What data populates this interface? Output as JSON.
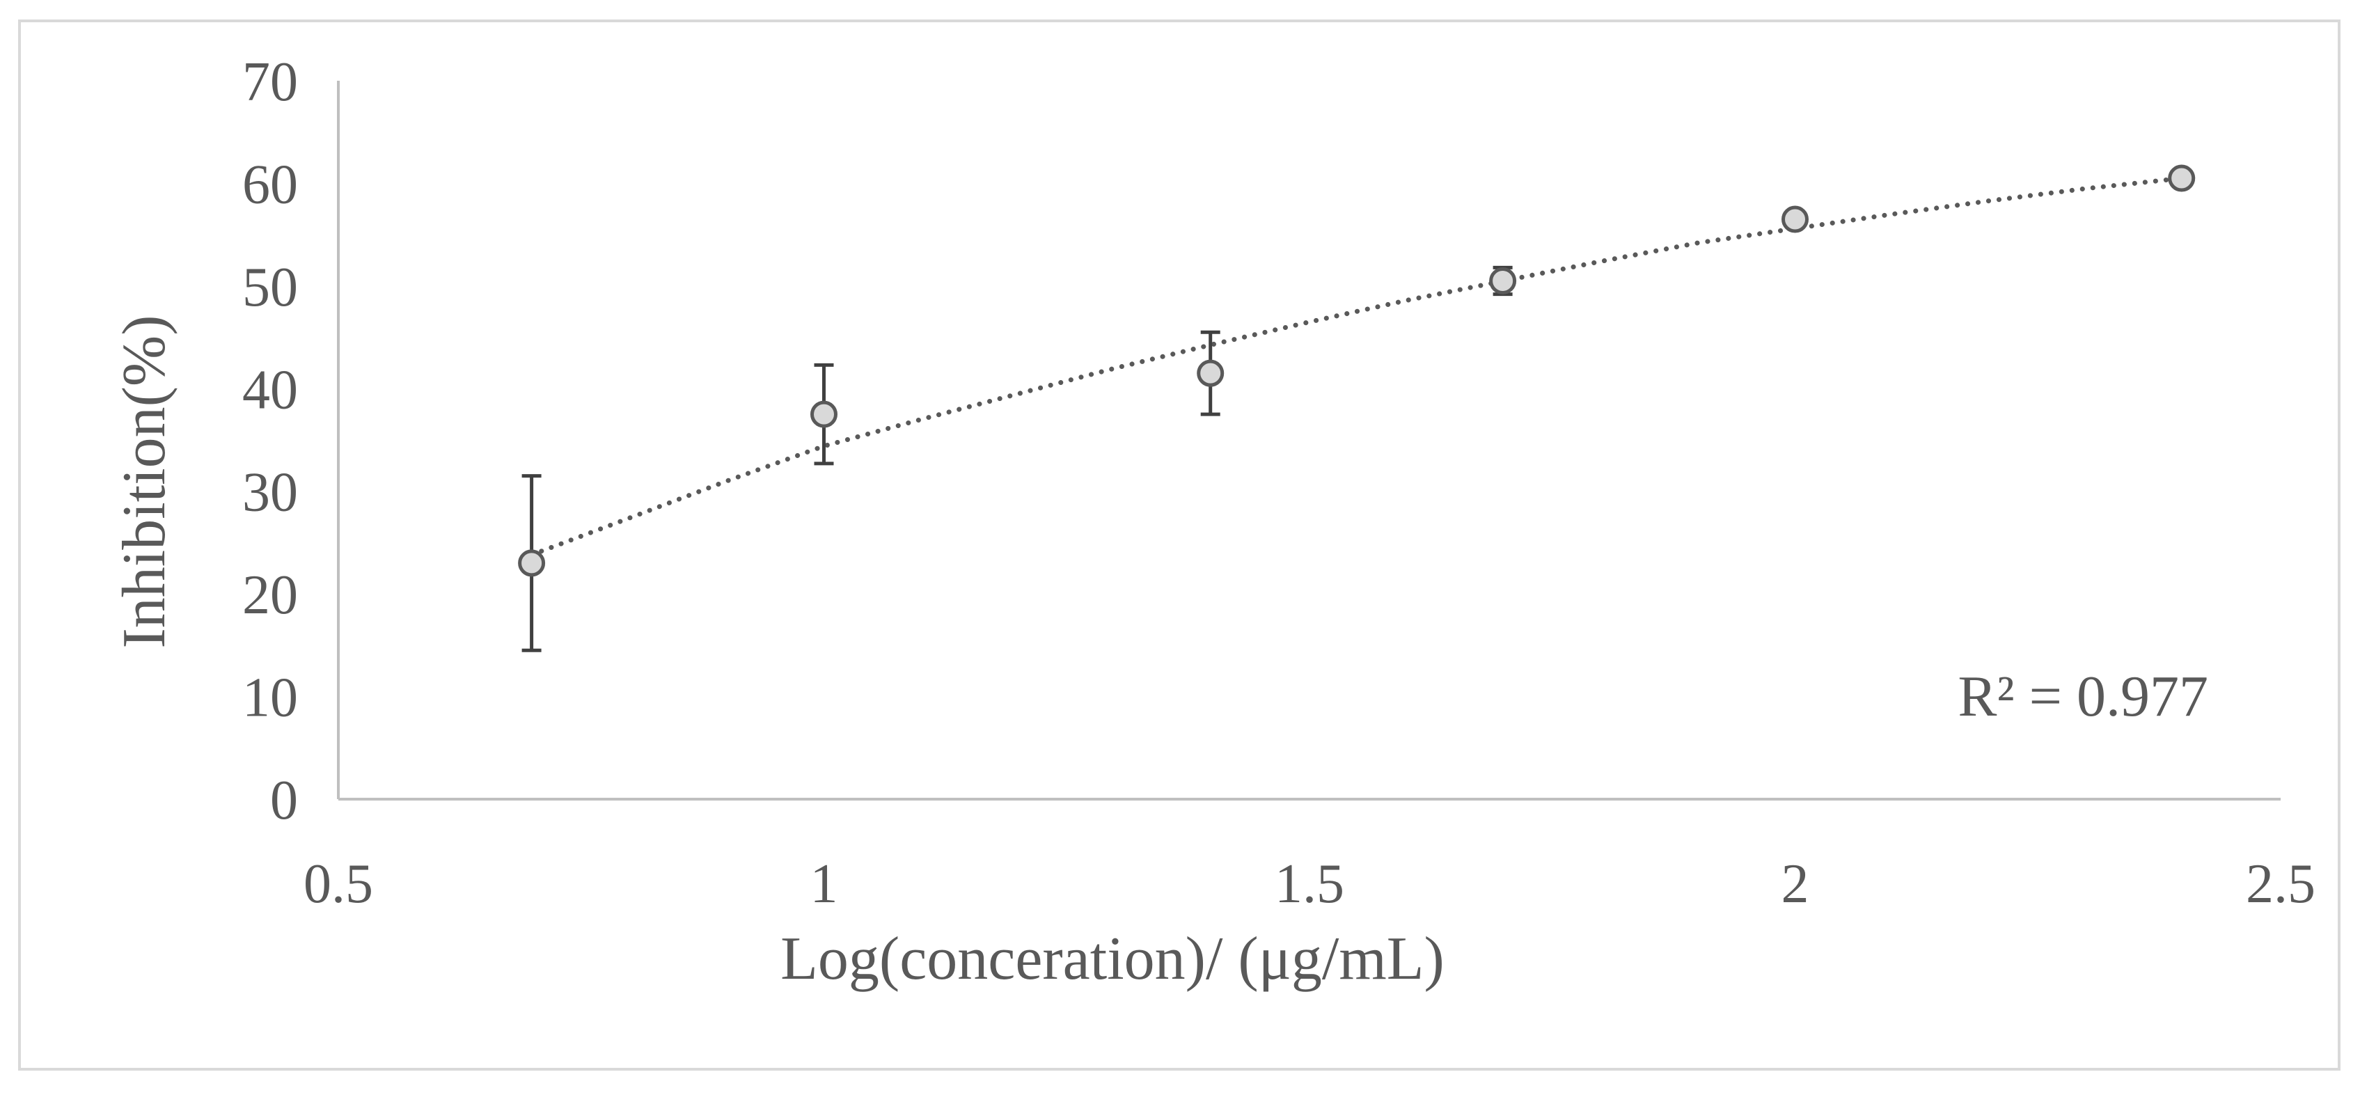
{
  "chart_data": {
    "type": "scatter",
    "title": "",
    "xlabel": "Log(conceration)/  (μg/mL)",
    "ylabel": "Inhibition(%)",
    "xlim": [
      0.5,
      2.5
    ],
    "ylim": [
      0,
      70
    ],
    "xticks": [
      0.5,
      1,
      1.5,
      2,
      2.5
    ],
    "xtick_labels": [
      "0.5",
      "1",
      "1.5",
      "2",
      "2.5"
    ],
    "yticks": [
      0,
      10,
      20,
      30,
      40,
      50,
      60,
      70
    ],
    "ytick_labels": [
      "0",
      "10",
      "20",
      "30",
      "40",
      "50",
      "60",
      "70"
    ],
    "grid": false,
    "series": [
      {
        "name": "Inhibition",
        "x": [
          0.699,
          1.0,
          1.398,
          1.699,
          2.0,
          2.398
        ],
        "y": [
          23.0,
          37.5,
          41.5,
          50.5,
          56.5,
          60.5
        ],
        "err_upper": [
          8.5,
          4.8,
          4.0,
          1.3,
          0.0,
          0.0
        ],
        "err_lower": [
          8.5,
          4.8,
          4.0,
          1.3,
          0.0,
          0.0
        ]
      }
    ],
    "trendline": {
      "type": "power",
      "style": "dotted",
      "x": [
        0.699,
        0.8,
        0.9,
        1.0,
        1.1,
        1.2,
        1.3,
        1.4,
        1.5,
        1.6,
        1.7,
        1.8,
        1.9,
        2.0,
        2.1,
        2.2,
        2.3,
        2.398
      ],
      "y": [
        23.8,
        27.4,
        31.0,
        34.4,
        37.0,
        39.5,
        42.0,
        44.3,
        46.5,
        48.6,
        50.5,
        52.4,
        54.2,
        55.6,
        57.0,
        58.3,
        59.5,
        60.5
      ],
      "r2_label": "R² = 0.977"
    },
    "colors": {
      "marker_fill": "#d9d9d9",
      "marker_stroke": "#595959",
      "axis": "#bfbfbf",
      "text": "#595959",
      "trendline": "#595959",
      "error_bar": "#404040"
    }
  }
}
